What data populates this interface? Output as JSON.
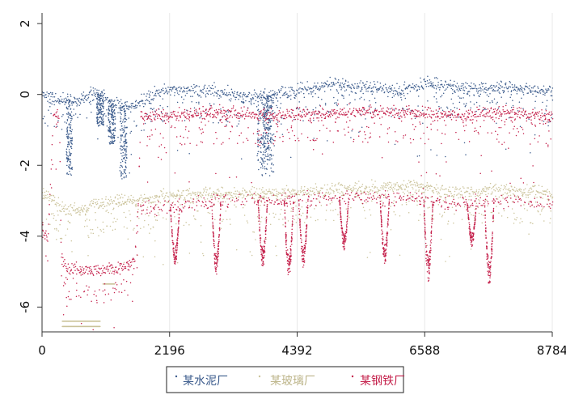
{
  "chart_data": {
    "type": "scatter",
    "xlim": [
      0,
      8784
    ],
    "ylim": [
      -6.7,
      2.3
    ],
    "x_ticks": [
      0,
      2196,
      4392,
      6588,
      8784
    ],
    "x_tick_labels": [
      "0",
      "2196",
      "4392",
      "6588",
      "8784"
    ],
    "y_ticks": [
      2,
      0,
      -2,
      -4,
      -6
    ],
    "y_tick_labels": [
      "2",
      "0",
      "-2",
      "-4",
      "-6"
    ],
    "grid": "vertical",
    "legend_position": "bottom",
    "series": [
      {
        "name": "某水泥厂",
        "color": "#3b5b8c",
        "baseline": [
          [
            0,
            0
          ],
          [
            300,
            -0.1
          ],
          [
            600,
            -0.2
          ],
          [
            900,
            0.1
          ],
          [
            1300,
            -0.3
          ],
          [
            1600,
            -0.3
          ],
          [
            2000,
            0.1
          ],
          [
            3000,
            0.1
          ],
          [
            3600,
            -0.1
          ],
          [
            4392,
            0.1
          ],
          [
            5000,
            0.3
          ],
          [
            5600,
            0.2
          ],
          [
            6200,
            0.1
          ],
          [
            6600,
            0.3
          ],
          [
            7200,
            0.2
          ],
          [
            8000,
            0.2
          ],
          [
            8784,
            0.1
          ]
        ],
        "drops": [
          {
            "x": [
              420,
              520
            ],
            "to": -2.3
          },
          {
            "x": 1000,
            "to": -0.9
          },
          {
            "x": 1200,
            "to": -1.4
          },
          {
            "x": 1400,
            "to": -2.4
          },
          {
            "x": [
              3700,
              4000
            ],
            "to": -2.3
          },
          {
            "x": [
              3800,
              3950
            ],
            "to": -1.9
          }
        ]
      },
      {
        "name": "某玻璃厂",
        "color": "#cbc39a",
        "baseline": [
          [
            0,
            -2.8
          ],
          [
            200,
            -2.9
          ],
          [
            300,
            -3.2
          ],
          [
            500,
            -3.3
          ],
          [
            1000,
            -3.1
          ],
          [
            1500,
            -3.0
          ],
          [
            2000,
            -2.9
          ],
          [
            3000,
            -2.8
          ],
          [
            4000,
            -2.8
          ],
          [
            5000,
            -2.7
          ],
          [
            6000,
            -2.6
          ],
          [
            6600,
            -2.6
          ],
          [
            7000,
            -2.8
          ],
          [
            8000,
            -2.7
          ],
          [
            8784,
            -2.8
          ]
        ],
        "segments": [
          {
            "x": [
              350,
              1000
            ],
            "y": -6.4
          },
          {
            "x": [
              350,
              1000
            ],
            "y": -6.55
          },
          {
            "x": [
              1050,
              1250
            ],
            "y": -5.35
          }
        ]
      },
      {
        "name": "某钢铁厂",
        "color": "#c41f4a",
        "baseline": [
          [
            0,
            -3.7
          ],
          [
            100,
            -4.1
          ],
          [
            200,
            -0.5
          ],
          [
            300,
            -0.6
          ],
          [
            330,
            -4.5
          ],
          [
            400,
            -4.9
          ],
          [
            1000,
            -5.0
          ],
          [
            1300,
            -4.9
          ],
          [
            1600,
            -4.7
          ],
          [
            1650,
            -3.3
          ],
          [
            1700,
            -0.6
          ],
          [
            2000,
            -0.6
          ],
          [
            3000,
            -0.5
          ],
          [
            4000,
            -0.6
          ],
          [
            5000,
            -0.5
          ],
          [
            6000,
            -0.5
          ],
          [
            6600,
            -0.5
          ],
          [
            7200,
            -0.6
          ],
          [
            8000,
            -0.5
          ],
          [
            8784,
            -0.6
          ]
        ],
        "lower_band": [
          [
            1700,
            -3.2
          ],
          [
            2200,
            -3.2
          ],
          [
            3000,
            -3.0
          ],
          [
            4000,
            -3.0
          ],
          [
            5000,
            -2.9
          ],
          [
            6000,
            -2.9
          ],
          [
            6600,
            -2.9
          ],
          [
            7000,
            -3.1
          ],
          [
            8000,
            -3.0
          ],
          [
            8784,
            -3.1
          ]
        ],
        "spikes": [
          {
            "x": 2290,
            "to": -4.8
          },
          {
            "x": 3000,
            "to": -5.1
          },
          {
            "x": 3800,
            "to": -4.9
          },
          {
            "x": 4250,
            "to": -5.2
          },
          {
            "x": 4500,
            "to": -4.9
          },
          {
            "x": 5200,
            "to": -4.4
          },
          {
            "x": 5900,
            "to": -4.8
          },
          {
            "x": 6650,
            "to": -5.3
          },
          {
            "x": 7400,
            "to": -4.3
          },
          {
            "x": 7700,
            "to": -5.4
          }
        ]
      }
    ]
  }
}
